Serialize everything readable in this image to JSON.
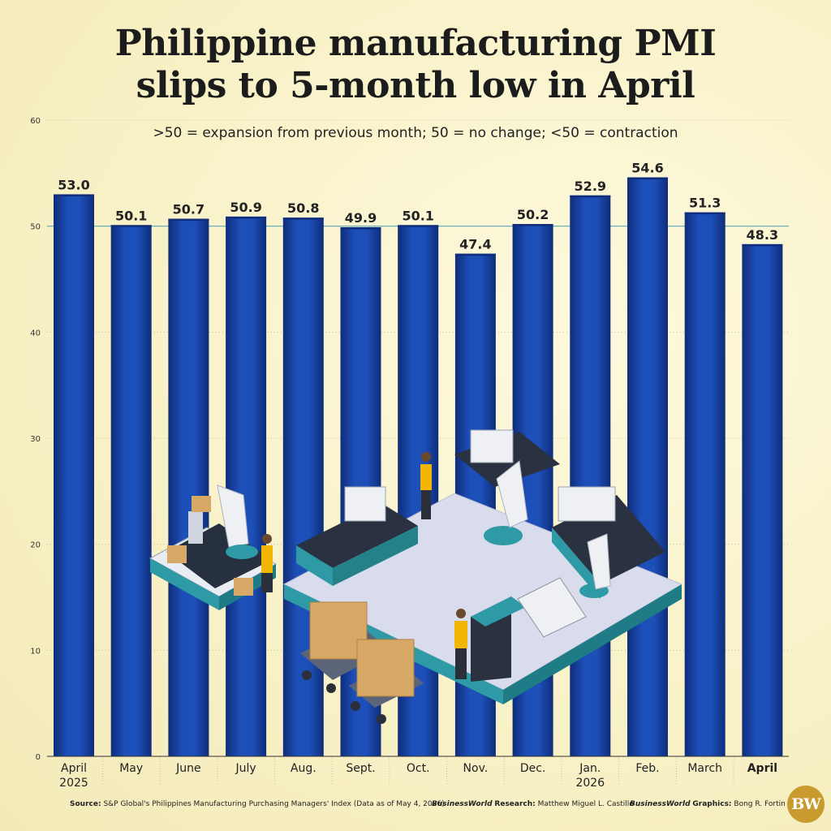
{
  "title_line1": "Philippine manufacturing PMI",
  "title_line2": "slips to 5-month low in April",
  "subtitle": ">50 = expansion from previous month; 50 = no change; <50 = contraction",
  "chart_data": {
    "type": "bar",
    "categories": [
      [
        "April",
        "2025"
      ],
      [
        "May"
      ],
      [
        "June"
      ],
      [
        "July"
      ],
      [
        "Aug."
      ],
      [
        "Sept."
      ],
      [
        "Oct."
      ],
      [
        "Nov."
      ],
      [
        "Dec."
      ],
      [
        "Jan.",
        "2026"
      ],
      [
        "Feb."
      ],
      [
        "March"
      ],
      [
        "April"
      ]
    ],
    "values": [
      53.0,
      50.1,
      50.7,
      50.9,
      50.8,
      49.9,
      50.1,
      47.4,
      50.2,
      52.9,
      54.6,
      51.3,
      48.3
    ],
    "value_labels": [
      "53.0",
      "50.1",
      "50.7",
      "50.9",
      "50.8",
      "49.9",
      "50.1",
      "47.4",
      "50.2",
      "52.9",
      "54.6",
      "51.3",
      "48.3"
    ],
    "highlight_last_category": true,
    "ylim": [
      0,
      60
    ],
    "yticks": [
      0,
      10,
      20,
      30,
      40,
      50,
      60
    ],
    "reference_line": 50,
    "grid": true,
    "bar_color": "#1a47a8",
    "bar_color_edge": "#0f2d7a"
  },
  "footer": {
    "source_label": "Source:",
    "source_text": "S&P Global's Philippines Manufacturing Purchasing Managers' Index (Data as of May 4, 2026)",
    "research_brand": "BusinessWorld",
    "research_label": "Research:",
    "research_name": "Matthew Miguel L. Castillo",
    "graphics_brand": "BusinessWorld",
    "graphics_label": "Graphics:",
    "graphics_name": "Bong R. Fortin"
  },
  "logo_text": "BW",
  "illustration": "factory-illustration"
}
